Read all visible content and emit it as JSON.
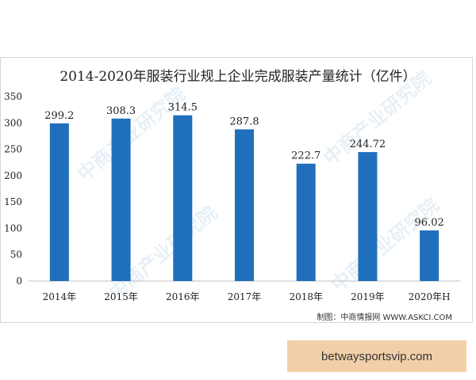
{
  "chart_data": {
    "type": "bar",
    "title": "2014-2020年服装行业规上企业完成服装产量统计（亿件）",
    "categories": [
      "2014年",
      "2015年",
      "2016年",
      "2017年",
      "2018年",
      "2019年",
      "2020年H"
    ],
    "values": [
      299.2,
      308.3,
      314.5,
      287.8,
      222.7,
      244.72,
      96.02
    ],
    "value_labels": [
      "299.2",
      "308.3",
      "314.5",
      "287.8",
      "222.7",
      "244.72",
      "96.02"
    ],
    "ylim": [
      0,
      350
    ],
    "yticks": [
      0,
      50,
      100,
      150,
      200,
      250,
      300,
      350
    ],
    "grid": false,
    "legend": "none",
    "bar_color": "#1f6fbd"
  },
  "credit": "制图：中商情报网 WWW.ASKCI.COM",
  "watermark": "中商产业研究院",
  "footer_banner": "betwaysportsvip.com"
}
